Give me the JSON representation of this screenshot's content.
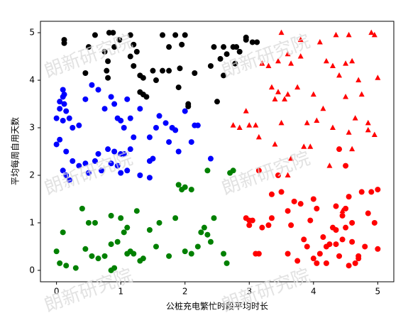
{
  "chart_data": {
    "type": "scatter",
    "xlabel": "公桩充电繁忙时段平均时长",
    "ylabel": "平均每周自用天数",
    "watermark": "朗新研究院",
    "xlim": [
      -0.25,
      5.25
    ],
    "ylim": [
      -0.24,
      5.24
    ],
    "xticks": [
      0,
      1,
      2,
      3,
      4,
      5
    ],
    "yticks": [
      0,
      1,
      2,
      3,
      4,
      5
    ],
    "series": [
      {
        "color": "#000000",
        "marker": "o",
        "x": [
          0.12,
          0.12,
          0.5,
          0.6,
          0.82,
          0.88,
          0.75,
          0.8,
          0.78,
          0.8,
          0.9,
          0.98,
          1.15,
          1.2,
          1.15,
          1.25,
          1.2,
          1.3,
          1.35,
          1.3,
          1.35,
          1.4,
          1.5,
          1.65,
          1.75,
          1.65,
          1.85,
          2.0,
          1.95,
          1.75,
          1.9,
          2.05,
          2.05,
          2.15,
          2.4,
          2.45,
          2.6,
          2.65,
          2.75,
          2.55,
          2.6,
          2.78,
          2.8,
          2.5,
          2.85,
          2.95,
          2.95,
          3.05,
          3.12,
          0.45,
          1.55,
          1.92
        ],
        "y": [
          4.85,
          4.78,
          4.7,
          4.95,
          5.0,
          5.0,
          4.6,
          4.4,
          4.2,
          4.05,
          4.7,
          4.85,
          4.95,
          4.75,
          4.5,
          4.6,
          4.3,
          4.1,
          4.05,
          3.75,
          3.7,
          3.65,
          4.2,
          4.2,
          4.7,
          4.95,
          4.95,
          4.95,
          4.75,
          4.2,
          3.85,
          3.5,
          3.45,
          4.15,
          4.3,
          4.7,
          4.7,
          4.55,
          4.7,
          4.45,
          4.1,
          4.35,
          4.7,
          3.55,
          4.6,
          4.9,
          4.85,
          4.8,
          4.8,
          4.15,
          4.0,
          4.25
        ]
      },
      {
        "color": "#0000ff",
        "marker": "o",
        "x": [
          0.05,
          0.1,
          0.12,
          0.05,
          0.12,
          0.1,
          0.15,
          0.0,
          0.1,
          0.2,
          0.25,
          0.35,
          0.45,
          0.55,
          0.65,
          0.75,
          0.85,
          0.9,
          0.95,
          1.0,
          1.05,
          1.1,
          1.15,
          0.0,
          0.05,
          0.15,
          0.25,
          0.1,
          0.15,
          0.2,
          0.35,
          0.45,
          0.5,
          0.6,
          0.65,
          0.7,
          0.8,
          0.9,
          0.95,
          1.0,
          1.05,
          1.1,
          1.2,
          1.15,
          1.3,
          1.45,
          1.5,
          1.45,
          1.55,
          1.6,
          1.7,
          1.8,
          1.85,
          1.75,
          1.9,
          2.0,
          2.15,
          2.2,
          2.1,
          2.4,
          1.45,
          1.0,
          0.85,
          1.3
        ],
        "y": [
          3.55,
          3.65,
          3.7,
          3.4,
          3.5,
          3.8,
          3.35,
          3.2,
          3.15,
          3.2,
          3.0,
          3.05,
          3.6,
          3.9,
          3.8,
          3.4,
          3.65,
          3.5,
          3.2,
          3.15,
          3.0,
          3.6,
          3.2,
          2.65,
          2.75,
          2.5,
          2.3,
          2.1,
          2.0,
          1.9,
          2.2,
          2.25,
          2.05,
          2.3,
          2.45,
          2.1,
          2.55,
          2.5,
          2.2,
          2.05,
          2.45,
          2.1,
          2.8,
          2.55,
          3.4,
          2.8,
          2.35,
          1.95,
          3.0,
          3.25,
          3.1,
          3.0,
          2.95,
          2.7,
          2.5,
          3.35,
          3.05,
          3.05,
          2.7,
          2.35,
          2.3,
          2.45,
          2.25,
          2.0
        ]
      },
      {
        "color": "#008000",
        "marker": "o",
        "x": [
          0.0,
          0.1,
          0.15,
          0.05,
          0.3,
          0.4,
          0.5,
          0.55,
          0.45,
          0.6,
          0.65,
          0.75,
          0.85,
          0.9,
          0.85,
          0.95,
          1.0,
          1.05,
          1.1,
          1.15,
          1.1,
          1.2,
          1.25,
          1.3,
          1.35,
          1.45,
          1.6,
          1.75,
          1.85,
          2.0,
          2.1,
          2.25,
          2.3,
          2.35,
          2.4,
          2.45,
          2.6,
          2.65,
          1.9,
          2.0,
          1.95,
          2.1,
          2.35,
          2.7,
          2.75,
          0.85,
          2.2,
          1.55
        ],
        "y": [
          0.4,
          0.8,
          0.1,
          0.15,
          0.05,
          1.3,
          1.0,
          0.3,
          0.45,
          1.0,
          0.25,
          0.3,
          0.0,
          0.05,
          1.15,
          0.6,
          1.1,
          0.8,
          0.35,
          0.4,
          0.9,
          0.35,
          1.25,
          0.2,
          0.25,
          0.85,
          1.0,
          0.3,
          1.1,
          0.4,
          0.35,
          0.8,
          0.9,
          0.75,
          0.6,
          1.1,
          0.35,
          0.15,
          1.8,
          1.75,
          1.7,
          1.7,
          2.1,
          2.05,
          2.1,
          0.55,
          0.5,
          0.5
        ]
      },
      {
        "color": "#ff0000",
        "marker": "o",
        "x": [
          2.95,
          3.0,
          3.05,
          3.1,
          3.15,
          3.2,
          3.3,
          3.35,
          3.35,
          3.45,
          3.5,
          3.6,
          3.65,
          3.7,
          3.75,
          3.8,
          3.85,
          3.9,
          3.95,
          4.0,
          4.05,
          4.0,
          4.1,
          4.15,
          4.2,
          4.25,
          4.3,
          4.35,
          4.35,
          4.4,
          4.45,
          4.45,
          4.5,
          4.5,
          4.55,
          4.6,
          4.6,
          4.65,
          4.7,
          4.75,
          4.8,
          4.85,
          4.9,
          4.95,
          5.0,
          5.0,
          4.5,
          4.4,
          3.0,
          3.15,
          4.7,
          4.05,
          4.35,
          4.55,
          4.2,
          3.6
        ],
        "y": [
          1.1,
          0.95,
          1.05,
          0.35,
          0.35,
          0.9,
          0.95,
          1.1,
          1.6,
          2.0,
          1.65,
          1.25,
          0.95,
          1.45,
          0.2,
          1.4,
          0.65,
          0.5,
          1.05,
          0.25,
          0.15,
          1.5,
          0.35,
          0.7,
          0.5,
          0.55,
          0.9,
          0.55,
          1.35,
          0.3,
          0.65,
          1.15,
          1.3,
          0.9,
          1.55,
          0.6,
          1.0,
          0.15,
          0.3,
          1.65,
          0.5,
          1.2,
          1.65,
          1.0,
          0.45,
          1.7,
          2.2,
          2.55,
          1.05,
          2.1,
          0.25,
          1.3,
          0.85,
          0.1,
          0.15,
          0.35
        ]
      },
      {
        "color": "#ff0000",
        "marker": "^",
        "x": [
          3.5,
          3.8,
          3.8,
          3.6,
          3.45,
          3.3,
          3.2,
          3.35,
          3.4,
          3.45,
          3.6,
          3.65,
          3.5,
          3.4,
          3.65,
          3.6,
          3.85,
          3.9,
          4.05,
          4.1,
          4.2,
          4.3,
          4.15,
          4.0,
          4.3,
          4.4,
          4.5,
          4.5,
          4.55,
          4.6,
          4.65,
          4.7,
          4.6,
          4.75,
          4.85,
          4.9,
          4.95,
          4.85,
          5.0,
          4.95,
          2.95,
          3.0,
          3.1,
          3.15,
          2.75,
          2.85,
          3.95,
          4.25,
          3.55,
          4.55,
          4.35,
          4.45,
          3.75
        ],
        "y": [
          5.0,
          4.85,
          4.5,
          4.55,
          4.4,
          4.3,
          4.35,
          3.85,
          3.6,
          3.75,
          3.7,
          4.35,
          3.1,
          2.65,
          2.35,
          2.0,
          2.6,
          3.1,
          3.15,
          4.8,
          4.4,
          4.3,
          3.4,
          3.7,
          3.0,
          4.1,
          4.35,
          3.65,
          2.9,
          2.55,
          3.2,
          4.0,
          4.4,
          3.7,
          3.1,
          5.0,
          4.95,
          2.95,
          4.05,
          2.85,
          3.35,
          3.05,
          3.05,
          2.8,
          3.05,
          3.0,
          2.6,
          2.2,
          3.6,
          4.95,
          4.95,
          1.25,
          3.85
        ]
      }
    ]
  }
}
